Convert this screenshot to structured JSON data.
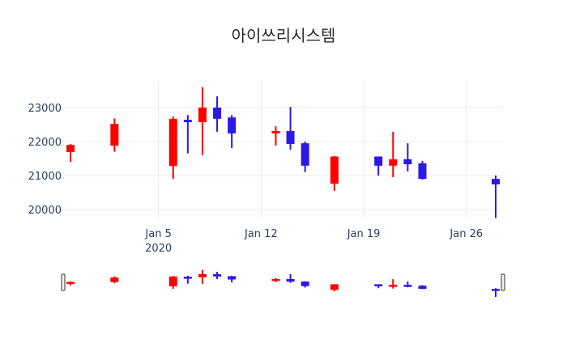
{
  "chart_data": {
    "type": "candlestick",
    "title": "아이쓰리시스템",
    "xlabel": "",
    "ylabel": "",
    "ylim": [
      19650,
      23800
    ],
    "yticks": [
      20000,
      21000,
      22000,
      23000
    ],
    "xticks": [
      {
        "date": "2020-01-05",
        "label": "Jan 5",
        "sublabel": "2020"
      },
      {
        "date": "2020-01-12",
        "label": "Jan 12",
        "sublabel": ""
      },
      {
        "date": "2020-01-19",
        "label": "Jan 19",
        "sublabel": ""
      },
      {
        "date": "2020-01-26",
        "label": "Jan 26",
        "sublabel": ""
      }
    ],
    "xrange": [
      "2019-12-29T12:00",
      "2020-01-28T12:00"
    ],
    "increasing_color": "#ff0000",
    "decreasing_color": "#2d18e8",
    "grid": true,
    "rangeslider": true,
    "candles": [
      {
        "date": "2019-12-30",
        "open": 21690,
        "high": 21930,
        "low": 21400,
        "close": 21900
      },
      {
        "date": "2020-01-02",
        "open": 21880,
        "high": 22680,
        "low": 21700,
        "close": 22520
      },
      {
        "date": "2020-01-06",
        "open": 21280,
        "high": 22740,
        "low": 20900,
        "close": 22670
      },
      {
        "date": "2020-01-07",
        "open": 22640,
        "high": 22780,
        "low": 21650,
        "close": 22570
      },
      {
        "date": "2020-01-08",
        "open": 22570,
        "high": 23600,
        "low": 21600,
        "close": 23000
      },
      {
        "date": "2020-01-09",
        "open": 23000,
        "high": 23330,
        "low": 22290,
        "close": 22670
      },
      {
        "date": "2020-01-10",
        "open": 22710,
        "high": 22780,
        "low": 21810,
        "close": 22240
      },
      {
        "date": "2020-01-13",
        "open": 22240,
        "high": 22450,
        "low": 21880,
        "close": 22310
      },
      {
        "date": "2020-01-14",
        "open": 22310,
        "high": 23020,
        "low": 21760,
        "close": 21930
      },
      {
        "date": "2020-01-15",
        "open": 21950,
        "high": 22000,
        "low": 21100,
        "close": 21290
      },
      {
        "date": "2020-01-17",
        "open": 20760,
        "high": 21570,
        "low": 20550,
        "close": 21560
      },
      {
        "date": "2020-01-20",
        "open": 21560,
        "high": 21560,
        "low": 21000,
        "close": 21290
      },
      {
        "date": "2020-01-21",
        "open": 21290,
        "high": 22290,
        "low": 20950,
        "close": 21480
      },
      {
        "date": "2020-01-22",
        "open": 21480,
        "high": 21950,
        "low": 21120,
        "close": 21330
      },
      {
        "date": "2020-01-23",
        "open": 21360,
        "high": 21430,
        "low": 20880,
        "close": 20900
      },
      {
        "date": "2020-01-28",
        "open": 20900,
        "high": 21000,
        "low": 19750,
        "close": 20740
      }
    ]
  }
}
